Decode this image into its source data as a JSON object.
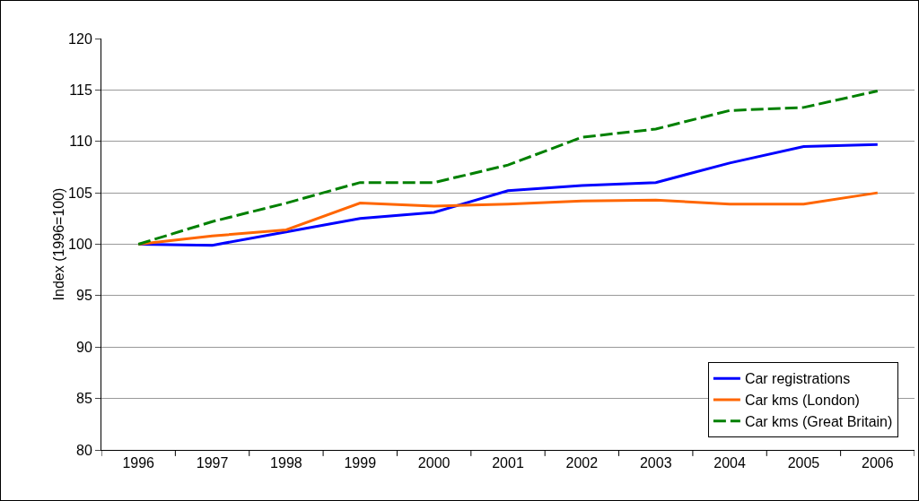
{
  "chart_data": {
    "type": "line",
    "ylabel": "Index (1996=100)",
    "categories": [
      "1996",
      "1997",
      "1998",
      "1999",
      "2000",
      "2001",
      "2002",
      "2003",
      "2004",
      "2005",
      "2006"
    ],
    "series": [
      {
        "name": "Car registrations",
        "color": "#0000ff",
        "line_style": "solid",
        "values": [
          100,
          99.9,
          101.2,
          102.5,
          103.1,
          105.2,
          105.7,
          106.0,
          107.9,
          109.5,
          109.7
        ]
      },
      {
        "name": "Car kms (London)",
        "color": "#ff6600",
        "line_style": "solid",
        "values": [
          100,
          100.8,
          101.4,
          104.0,
          103.7,
          103.9,
          104.2,
          104.3,
          103.9,
          103.9,
          105.0
        ]
      },
      {
        "name": "Car kms (Great Britain)",
        "color": "#008000",
        "line_style": "dashed",
        "values": [
          100,
          102.2,
          104.0,
          106.0,
          106.0,
          107.7,
          110.4,
          111.2,
          113.0,
          113.3,
          114.9
        ]
      }
    ],
    "ylim": [
      80,
      120
    ],
    "yticks": [
      80,
      85,
      90,
      95,
      100,
      105,
      110,
      115,
      120
    ],
    "grid": "y",
    "legend": "bottom right",
    "marker": "none"
  }
}
